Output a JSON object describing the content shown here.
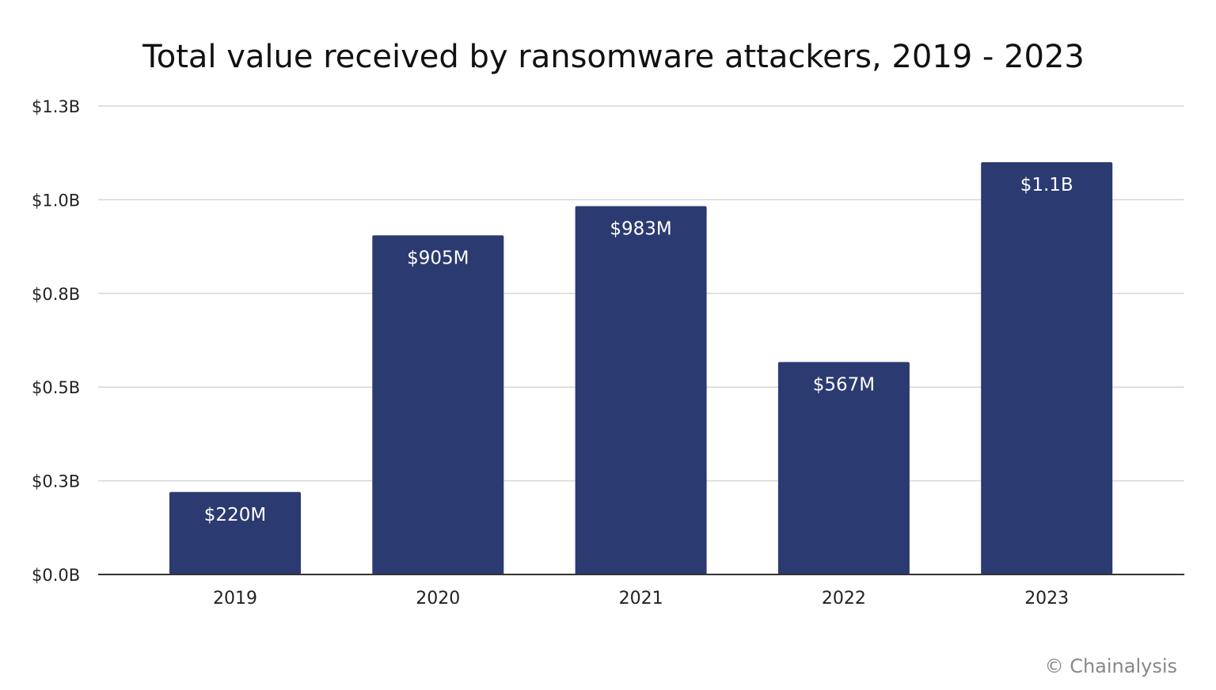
{
  "chart_data": {
    "type": "bar",
    "title": "Total value received by ransomware attackers, 2019 - 2023",
    "xlabel": "",
    "ylabel": "",
    "categories": [
      "2019",
      "2020",
      "2021",
      "2022",
      "2023"
    ],
    "values": [
      0.22,
      0.905,
      0.983,
      0.567,
      1.1
    ],
    "value_units": "billions USD",
    "data_labels": [
      "$220M",
      "$905M",
      "$983M",
      "$567M",
      "$1.1B"
    ],
    "ylim": [
      0,
      1.25
    ],
    "yticks": [
      0,
      0.25,
      0.5,
      0.75,
      1.0,
      1.25
    ],
    "ytick_labels": [
      "$0.0B",
      "$0.3B",
      "$0.5B",
      "$0.8B",
      "$1.0B",
      "$1.3B"
    ],
    "grid": true,
    "legend": "none",
    "bar_color": "#2b3a70",
    "credit": "© Chainalysis"
  }
}
